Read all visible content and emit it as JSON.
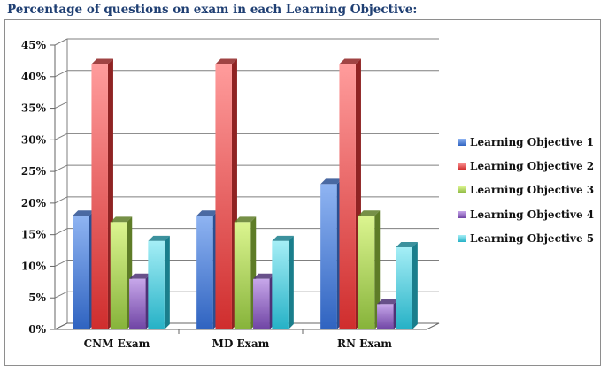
{
  "title": "Percentage of questions on exam in each Learning Objective:",
  "chart_data": {
    "type": "bar",
    "categories": [
      "CNM Exam",
      "MD Exam",
      "RN Exam"
    ],
    "series": [
      {
        "name": "Learning Objective 1",
        "values": [
          18,
          18,
          23
        ]
      },
      {
        "name": "Learning Objective 2",
        "values": [
          42,
          42,
          42
        ]
      },
      {
        "name": "Learning Objective 3",
        "values": [
          17,
          17,
          18
        ]
      },
      {
        "name": "Learning Objective 4",
        "values": [
          8,
          8,
          4
        ]
      },
      {
        "name": "Learning Objective 5",
        "values": [
          14,
          14,
          13
        ]
      }
    ],
    "yticks": [
      "0%",
      "5%",
      "10%",
      "15%",
      "20%",
      "25%",
      "30%",
      "35%",
      "40%",
      "45%"
    ],
    "ylim": [
      0,
      45
    ],
    "grid": true,
    "legend": "right",
    "colors": [
      {
        "light": "#8fb4f2",
        "dark": "#2f63c0",
        "side": "#2a4f92"
      },
      {
        "light": "#ff9c9c",
        "dark": "#cf2d2d",
        "side": "#8f2323"
      },
      {
        "light": "#dcf590",
        "dark": "#86b33a",
        "side": "#5e7c27"
      },
      {
        "light": "#c7a7ea",
        "dark": "#6f44a4",
        "side": "#4e3176"
      },
      {
        "light": "#a5eef6",
        "dark": "#25b1c6",
        "side": "#1a7e8c"
      }
    ]
  }
}
